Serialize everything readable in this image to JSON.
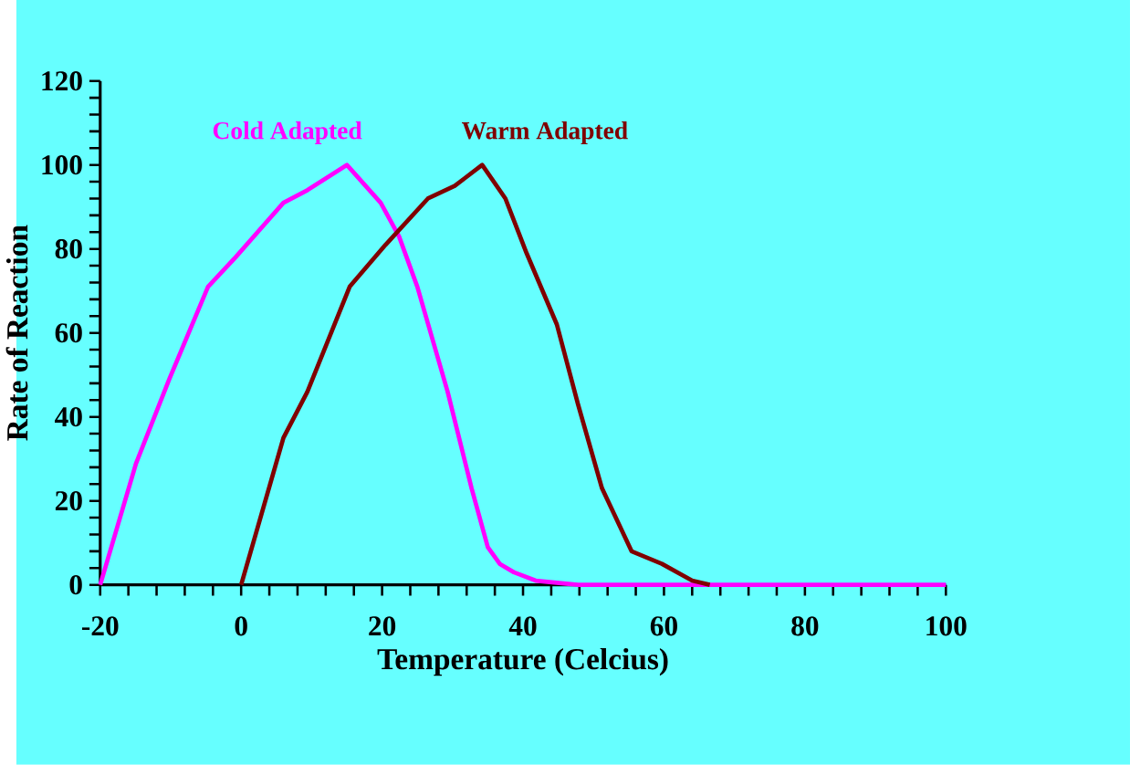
{
  "chart_data": {
    "type": "line",
    "xlabel": "Temperature (Celcius)",
    "ylabel": "Rate of Reaction",
    "xlim": [
      -20,
      100
    ],
    "ylim": [
      0,
      120
    ],
    "xticks": [
      -20,
      {
        "value": -16,
        "label": null
      },
      {
        "value": -12,
        "label": null
      },
      {
        "value": -8,
        "label": null
      },
      {
        "value": -4,
        "label": null
      },
      0,
      {
        "value": 4,
        "label": null
      },
      {
        "value": 8,
        "label": null
      },
      {
        "value": 12,
        "label": null
      },
      {
        "value": 16,
        "label": null
      },
      20,
      {
        "value": 24,
        "label": null
      },
      {
        "value": 28,
        "label": null
      },
      {
        "value": 32,
        "label": null
      },
      {
        "value": 36,
        "label": null
      },
      40,
      {
        "value": 44,
        "label": null
      },
      {
        "value": 48,
        "label": null
      },
      {
        "value": 52,
        "label": null
      },
      {
        "value": 56,
        "label": null
      },
      60,
      {
        "value": 64,
        "label": null
      },
      {
        "value": 68,
        "label": null
      },
      {
        "value": 72,
        "label": null
      },
      {
        "value": 76,
        "label": null
      },
      80,
      {
        "value": 84,
        "label": null
      },
      {
        "value": 88,
        "label": null
      },
      {
        "value": 92,
        "label": null
      },
      {
        "value": 96,
        "label": null
      },
      100
    ],
    "yticks": [
      0,
      {
        "value": 4,
        "label": null
      },
      {
        "value": 8,
        "label": null
      },
      {
        "value": 12,
        "label": null
      },
      {
        "value": 16,
        "label": null
      },
      20,
      {
        "value": 24,
        "label": null
      },
      {
        "value": 28,
        "label": null
      },
      {
        "value": 32,
        "label": null
      },
      {
        "value": 36,
        "label": null
      },
      40,
      {
        "value": 44,
        "label": null
      },
      {
        "value": 48,
        "label": null
      },
      {
        "value": 52,
        "label": null
      },
      {
        "value": 56,
        "label": null
      },
      60,
      {
        "value": 64,
        "label": null
      },
      {
        "value": 68,
        "label": null
      },
      {
        "value": 72,
        "label": null
      },
      {
        "value": 76,
        "label": null
      },
      80,
      {
        "value": 84,
        "label": null
      },
      {
        "value": 88,
        "label": null
      },
      {
        "value": 92,
        "label": null
      },
      {
        "value": 96,
        "label": null
      },
      100,
      {
        "value": 104,
        "label": null
      },
      {
        "value": 108,
        "label": null
      },
      {
        "value": 112,
        "label": null
      },
      {
        "value": 116,
        "label": null
      },
      120
    ],
    "series": [
      {
        "name": "Cold Adapted",
        "color": "#ff00ff",
        "x": [
          -20,
          -14.9,
          -10.2,
          -4.7,
          -0.8,
          6.0,
          9.4,
          15.0,
          19.8,
          22.4,
          25.0,
          29.3,
          32.7,
          35.0,
          36.7,
          38.7,
          41.8,
          47.8,
          100
        ],
        "values": [
          0,
          29,
          49,
          71,
          78,
          91,
          94,
          100,
          91,
          83,
          71,
          46,
          23,
          9,
          5,
          3,
          1,
          0,
          0
        ]
      },
      {
        "name": "Warm Adapted",
        "color": "#800000",
        "x": [
          0,
          6.0,
          9.4,
          15.4,
          20.5,
          26.5,
          30.3,
          34.2,
          37.5,
          40.5,
          44.8,
          47.8,
          51.2,
          55.4,
          59.7,
          64.0,
          66.5
        ],
        "values": [
          0,
          35,
          46,
          71,
          81,
          92,
          95,
          100,
          92,
          79,
          62,
          43,
          23,
          8,
          5,
          1,
          0
        ]
      }
    ]
  }
}
